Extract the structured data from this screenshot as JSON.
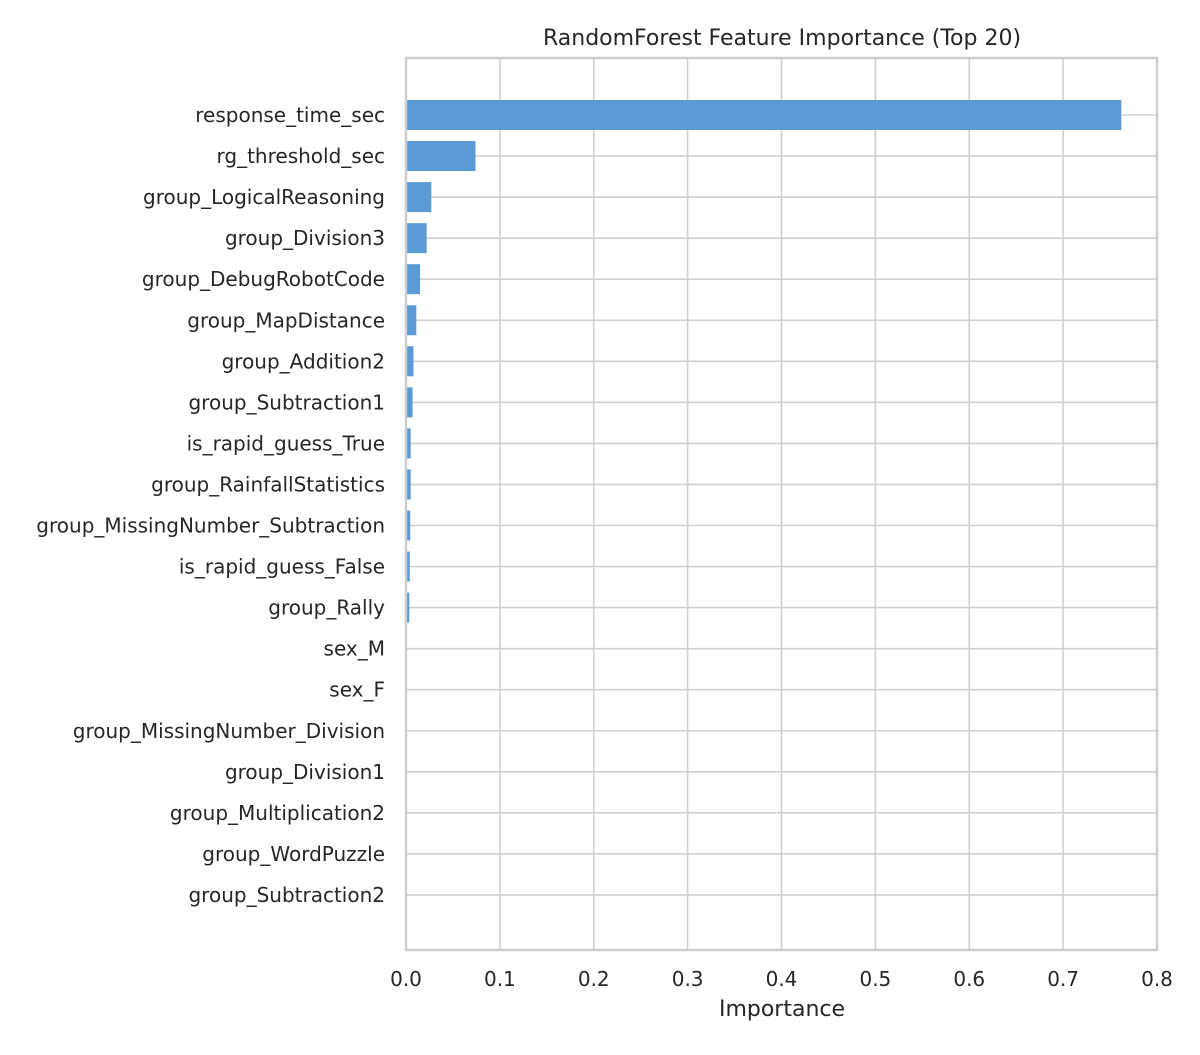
{
  "chart_data": {
    "type": "bar",
    "orientation": "horizontal",
    "title": "RandomForest Feature Importance (Top 20)",
    "xlabel": "Importance",
    "ylabel": "",
    "xlim": [
      0.0,
      0.8
    ],
    "xticks": [
      "0.0",
      "0.1",
      "0.2",
      "0.3",
      "0.4",
      "0.5",
      "0.6",
      "0.7",
      "0.8"
    ],
    "grid": true,
    "bar_color": "#5b9bd5",
    "categories": [
      "response_time_sec",
      "rg_threshold_sec",
      "group_LogicalReasoning",
      "group_Division3",
      "group_DebugRobotCode",
      "group_MapDistance",
      "group_Addition2",
      "group_Subtraction1",
      "is_rapid_guess_True",
      "group_RainfallStatistics",
      "group_MissingNumber_Subtraction",
      "is_rapid_guess_False",
      "group_Rally",
      "sex_M",
      "sex_F",
      "group_MissingNumber_Division",
      "group_Division1",
      "group_Multiplication2",
      "group_WordPuzzle",
      "group_Subtraction2"
    ],
    "values": [
      0.762,
      0.074,
      0.027,
      0.022,
      0.015,
      0.011,
      0.008,
      0.007,
      0.005,
      0.005,
      0.0045,
      0.004,
      0.0035,
      0.001,
      0.001,
      0.0008,
      0.0006,
      0.0004,
      0.0002,
      0.0001
    ]
  }
}
